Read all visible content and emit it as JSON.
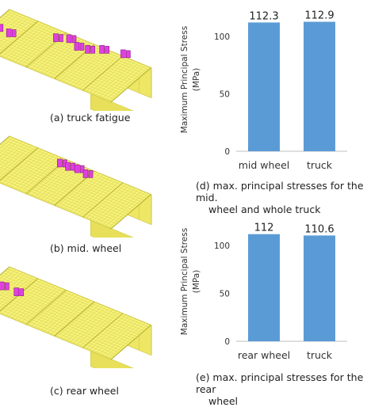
{
  "figures": {
    "a": {
      "caption": "(a) truck fatigue"
    },
    "b": {
      "caption": "(b) mid. wheel"
    },
    "c": {
      "caption": "(c) rear wheel"
    }
  },
  "colors": {
    "deck": "#f6f27a",
    "deck_mesh": "#c9c23a",
    "web": "#eee766",
    "load_patch": "#e040e0",
    "bar": "#5b9bd5",
    "axis": "#bfbfbf"
  },
  "chart_data": [
    {
      "type": "bar",
      "categories": [
        "mid wheel",
        "truck"
      ],
      "values": [
        112.3,
        112.9
      ],
      "data_labels": [
        "112.3",
        "112.9"
      ],
      "ylabel_line1": "Maximum Principal Stress",
      "ylabel_line2": "(MPa)",
      "yticks": [
        0,
        50,
        100
      ],
      "ylim": [
        0,
        125
      ],
      "grid": false,
      "caption_line1": "(d) max. principal stresses for the mid.",
      "caption_line2": "wheel and whole truck"
    },
    {
      "type": "bar",
      "categories": [
        "rear wheel",
        "truck"
      ],
      "values": [
        112,
        110.6
      ],
      "data_labels": [
        "112",
        "110.6"
      ],
      "ylabel_line1": "Maximum Principal Stress",
      "ylabel_line2": "(MPa)",
      "yticks": [
        0,
        50,
        100
      ],
      "ylim": [
        0,
        125
      ],
      "grid": false,
      "caption_line1": "(e) max. principal stresses for the rear",
      "caption_line2": "wheel"
    }
  ]
}
